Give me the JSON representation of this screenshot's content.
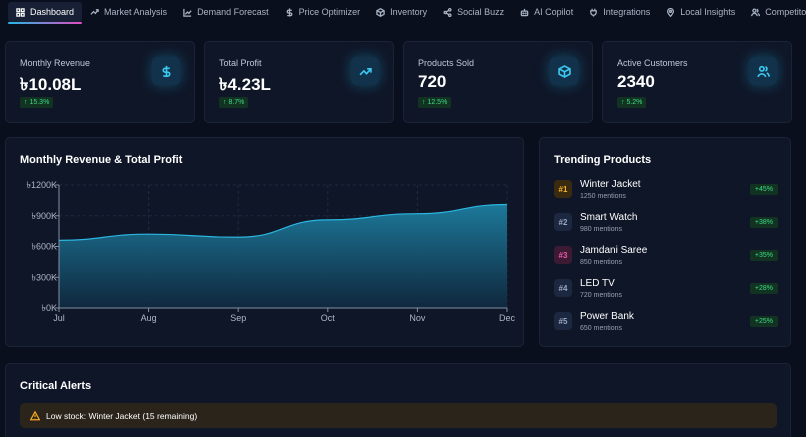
{
  "nav": [
    {
      "label": "Dashboard",
      "icon": "grid-icon",
      "active": true
    },
    {
      "label": "Market Analysis",
      "icon": "trend-line-icon"
    },
    {
      "label": "Demand Forecast",
      "icon": "chart-line-icon"
    },
    {
      "label": "Price Optimizer",
      "icon": "dollar-icon"
    },
    {
      "label": "Inventory",
      "icon": "box-icon"
    },
    {
      "label": "Social Buzz",
      "icon": "share-icon"
    },
    {
      "label": "AI Copilot",
      "icon": "robot-icon"
    },
    {
      "label": "Integrations",
      "icon": "plug-icon"
    },
    {
      "label": "Local Insights",
      "icon": "map-pin-icon"
    },
    {
      "label": "Competitors",
      "icon": "users-icon"
    }
  ],
  "stats": [
    {
      "label": "Monthly Revenue",
      "value": "৳10.08L",
      "change": "↑ 15.3%",
      "icon": "dollar-icon"
    },
    {
      "label": "Total Profit",
      "value": "৳4.23L",
      "change": "↑ 8.7%",
      "icon": "trending-up-icon"
    },
    {
      "label": "Products Sold",
      "value": "720",
      "change": "↑ 12.5%",
      "icon": "box-icon"
    },
    {
      "label": "Active Customers",
      "value": "2340",
      "change": "↑ 5.2%",
      "icon": "users-icon"
    }
  ],
  "chart": {
    "title": "Monthly Revenue & Total Profit"
  },
  "chart_data": {
    "type": "area",
    "title": "Monthly Revenue & Total Profit",
    "categories": [
      "Jul",
      "Aug",
      "Sep",
      "Oct",
      "Nov",
      "Dec"
    ],
    "series": [
      {
        "values": [
          660,
          720,
          690,
          860,
          920,
          1010
        ],
        "color": "#2bb6e0"
      }
    ],
    "y_ticks": [
      0,
      300,
      600,
      900,
      1200
    ],
    "y_tick_labels": [
      "৳0K",
      "৳300K",
      "৳600K",
      "৳900K",
      "৳1200K"
    ],
    "ylim": [
      0,
      1200
    ],
    "grid": true
  },
  "trending": {
    "title": "Trending Products",
    "items": [
      {
        "rank": "#1",
        "name": "Winter Jacket",
        "mentions": "1250 mentions",
        "pct": "+45%",
        "bg": "#3a2a10",
        "fg": "#f5b32b"
      },
      {
        "rank": "#2",
        "name": "Smart Watch",
        "mentions": "980 mentions",
        "pct": "+38%",
        "bg": "#1b2840",
        "fg": "#9aa8c2"
      },
      {
        "rank": "#3",
        "name": "Jamdani Saree",
        "mentions": "850 mentions",
        "pct": "+35%",
        "bg": "#3c1a34",
        "fg": "#e85aa8"
      },
      {
        "rank": "#4",
        "name": "LED TV",
        "mentions": "720 mentions",
        "pct": "+28%",
        "bg": "#1b2840",
        "fg": "#9aa8c2"
      },
      {
        "rank": "#5",
        "name": "Power Bank",
        "mentions": "650 mentions",
        "pct": "+25%",
        "bg": "#1b2840",
        "fg": "#9aa8c2"
      }
    ]
  },
  "alerts": {
    "title": "Critical Alerts",
    "items": [
      {
        "text": "Low stock: Winter Jacket (15 remaining)",
        "icon": "warning-icon"
      }
    ]
  }
}
